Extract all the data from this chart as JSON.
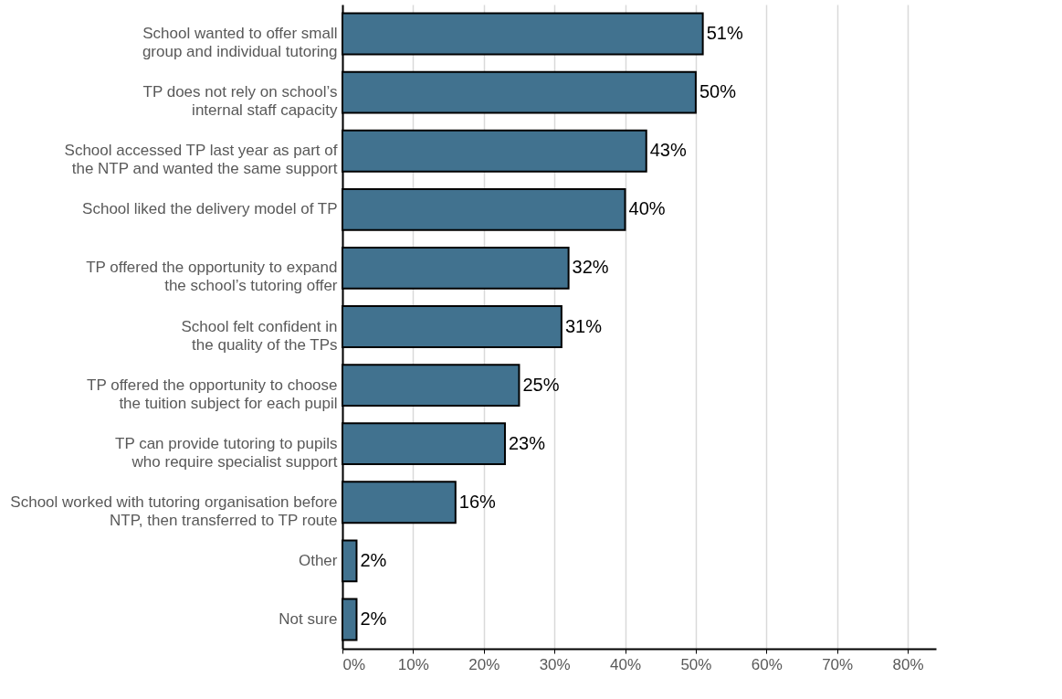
{
  "chart_data": {
    "type": "bar",
    "orientation": "horizontal",
    "categories": [
      "School wanted to offer small\ngroup and individual tutoring",
      "TP does not rely on school’s\ninternal staff capacity",
      "School accessed TP last year as part of\nthe NTP and wanted the same support",
      "School liked the delivery model of TP",
      "TP offered the opportunity to expand\nthe school’s tutoring offer",
      "School felt confident in\nthe quality of the TPs",
      "TP offered the opportunity to choose\nthe tuition subject for each pupil",
      "TP can provide tutoring to pupils\nwho require specialist support",
      "School worked with tutoring organisation before\nNTP, then transferred to TP route",
      "Other",
      "Not sure"
    ],
    "values": [
      51,
      50,
      43,
      40,
      32,
      31,
      25,
      23,
      16,
      2,
      2
    ],
    "value_labels": [
      "51%",
      "50%",
      "43%",
      "40%",
      "32%",
      "31%",
      "25%",
      "23%",
      "16%",
      "2%",
      "2%"
    ],
    "color": "#41728f",
    "xlim": [
      0,
      84
    ],
    "xticks": [
      {
        "value": 0,
        "label": "0%"
      },
      {
        "value": 10,
        "label": "10%"
      },
      {
        "value": 20,
        "label": "20%"
      },
      {
        "value": 30,
        "label": "30%"
      },
      {
        "value": 40,
        "label": "40%"
      },
      {
        "value": 50,
        "label": "50%"
      },
      {
        "value": 60,
        "label": "60%"
      },
      {
        "value": 70,
        "label": "70%"
      },
      {
        "value": 80,
        "label": "80%"
      }
    ],
    "grid": "x"
  }
}
